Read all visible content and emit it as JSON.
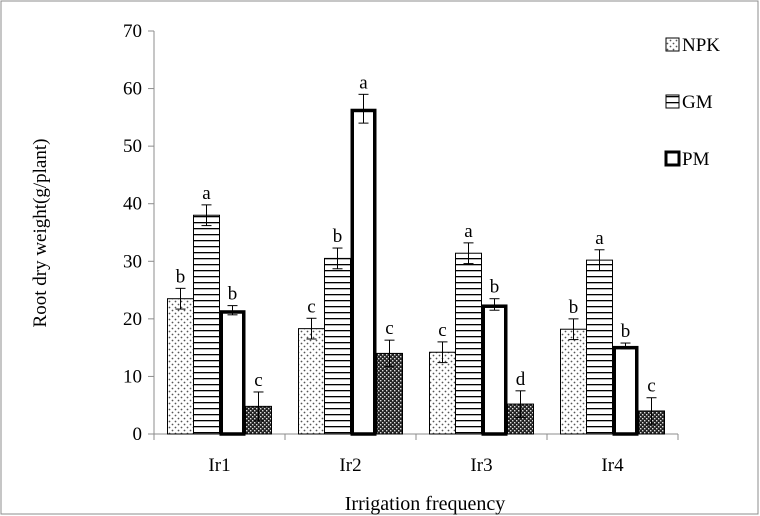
{
  "chart_data": {
    "type": "bar",
    "xlabel": "Irrigation frequency",
    "ylabel": "Root dry weight(g/plant)",
    "categories": [
      "Ir1",
      "Ir2",
      "Ir3",
      "Ir4"
    ],
    "ylim": [
      0,
      70
    ],
    "yticks": [
      0,
      10,
      20,
      30,
      40,
      50,
      60,
      70
    ],
    "grid": false,
    "legend_position": "top-right",
    "series": [
      {
        "name": "NPK",
        "pattern": "dots",
        "values": [
          23.5,
          18.3,
          14.2,
          18.2
        ],
        "errors": [
          1.8,
          1.8,
          1.8,
          1.8
        ],
        "letters": [
          "b",
          "c",
          "c",
          "b"
        ]
      },
      {
        "name": "GM",
        "pattern": "horizontal-stripes",
        "values": [
          38.0,
          30.5,
          31.4,
          30.2
        ],
        "errors": [
          1.8,
          1.8,
          1.8,
          1.8
        ],
        "letters": [
          "a",
          "b",
          "a",
          "a"
        ]
      },
      {
        "name": "PM",
        "pattern": "white-thick-outline",
        "values": [
          21.5,
          56.5,
          22.5,
          15.3
        ],
        "errors": [
          0.8,
          2.5,
          1.0,
          0.5
        ],
        "letters": [
          "b",
          "a",
          "b",
          "b"
        ]
      },
      {
        "name": "",
        "pattern": "dark-checker",
        "values": [
          4.8,
          14.0,
          5.2,
          4.0
        ],
        "errors": [
          2.5,
          2.3,
          2.3,
          2.3
        ],
        "letters": [
          "c",
          "c",
          "d",
          "c"
        ]
      }
    ],
    "colors": {
      "axis": "#8c8c8c",
      "border": "#8c8c8c",
      "bar_edge": "#000000",
      "background": "#ffffff"
    }
  }
}
